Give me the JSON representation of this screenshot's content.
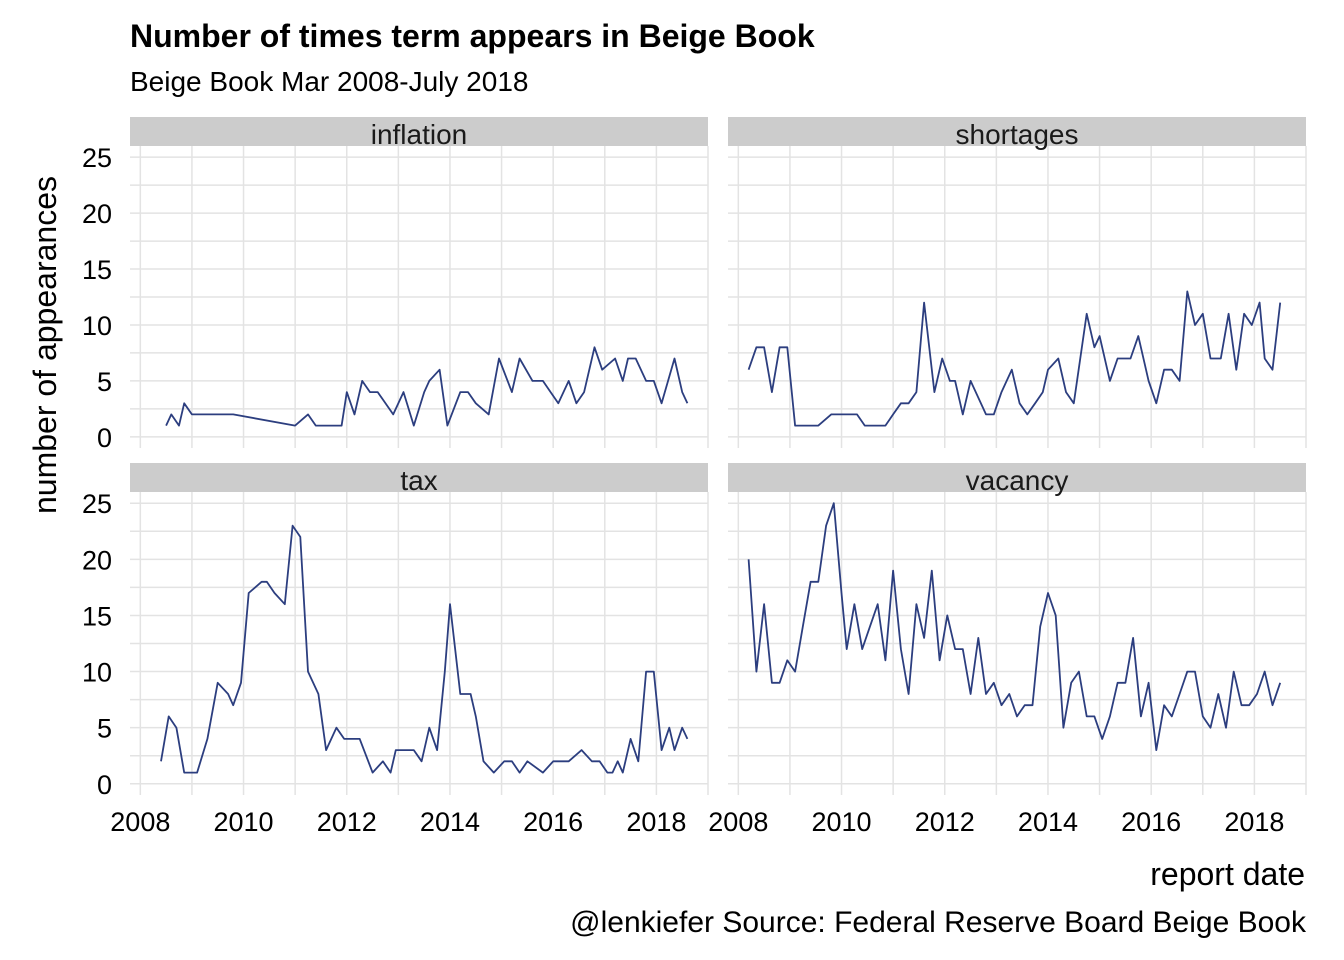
{
  "title": "Number of times term appears in Beige Book",
  "subtitle": "Beige Book Mar 2008-July 2018",
  "caption": "@lenkiefer Source: Federal Reserve Board Beige Book",
  "colors": {
    "line": "#2c3e7f",
    "strip": "#cccccc",
    "grid": "#e3e3e3"
  },
  "chart_data": {
    "type": "line",
    "title": "Number of times term appears in Beige Book",
    "xlabel": "report date",
    "ylabel": "number of appearances",
    "xlim": [
      2007.8,
      2019.0
    ],
    "ylim": [
      -1,
      26
    ],
    "x_ticks": [
      2008,
      2010,
      2012,
      2014,
      2016,
      2018
    ],
    "y_ticks": [
      0,
      5,
      10,
      15,
      20,
      25
    ],
    "grid": true,
    "facets": [
      {
        "name": "inflation",
        "x": [
          2008.5,
          2008.6,
          2008.75,
          2008.85,
          2009.0,
          2009.8,
          2011.0,
          2011.25,
          2011.4,
          2011.6,
          2011.9,
          2012.0,
          2012.15,
          2012.3,
          2012.45,
          2012.6,
          2012.9,
          2013.1,
          2013.3,
          2013.5,
          2013.6,
          2013.8,
          2013.95,
          2014.2,
          2014.35,
          2014.5,
          2014.75,
          2014.95,
          2015.2,
          2015.35,
          2015.6,
          2015.8,
          2015.95,
          2016.1,
          2016.3,
          2016.45,
          2016.6,
          2016.8,
          2016.95,
          2017.2,
          2017.35,
          2017.45,
          2017.6,
          2017.8,
          2017.95,
          2018.1,
          2018.35,
          2018.5,
          2018.6
        ],
        "y": [
          1,
          2,
          1,
          3,
          2,
          2,
          1,
          2,
          1,
          1,
          1,
          4,
          2,
          5,
          4,
          4,
          2,
          4,
          1,
          4,
          5,
          6,
          1,
          4,
          4,
          3,
          2,
          7,
          4,
          7,
          5,
          5,
          4,
          3,
          5,
          3,
          4,
          8,
          6,
          7,
          5,
          7,
          7,
          5,
          5,
          3,
          7,
          4,
          3
        ]
      },
      {
        "name": "shortages",
        "x": [
          2008.2,
          2008.35,
          2008.5,
          2008.65,
          2008.8,
          2008.95,
          2009.1,
          2009.55,
          2009.8,
          2010.3,
          2010.45,
          2010.85,
          2011.0,
          2011.15,
          2011.3,
          2011.45,
          2011.6,
          2011.8,
          2011.95,
          2012.1,
          2012.2,
          2012.35,
          2012.5,
          2012.8,
          2012.95,
          2013.1,
          2013.3,
          2013.45,
          2013.6,
          2013.75,
          2013.9,
          2014.0,
          2014.2,
          2014.35,
          2014.5,
          2014.75,
          2014.9,
          2015.0,
          2015.2,
          2015.35,
          2015.6,
          2015.75,
          2015.95,
          2016.1,
          2016.25,
          2016.4,
          2016.55,
          2016.7,
          2016.85,
          2017.0,
          2017.15,
          2017.35,
          2017.5,
          2017.65,
          2017.8,
          2017.95,
          2018.1,
          2018.2,
          2018.35,
          2018.5
        ],
        "y": [
          6,
          8,
          8,
          4,
          8,
          8,
          1,
          1,
          2,
          2,
          1,
          1,
          2,
          3,
          3,
          4,
          12,
          4,
          7,
          5,
          5,
          2,
          5,
          2,
          2,
          4,
          6,
          3,
          2,
          3,
          4,
          6,
          7,
          4,
          3,
          11,
          8,
          9,
          5,
          7,
          7,
          9,
          5,
          3,
          6,
          6,
          5,
          13,
          10,
          11,
          7,
          7,
          11,
          6,
          11,
          10,
          12,
          7,
          6,
          12
        ]
      },
      {
        "name": "tax",
        "x": [
          2008.4,
          2008.55,
          2008.7,
          2008.85,
          2009.1,
          2009.3,
          2009.5,
          2009.7,
          2009.8,
          2009.95,
          2010.1,
          2010.35,
          2010.45,
          2010.6,
          2010.8,
          2010.95,
          2011.1,
          2011.25,
          2011.45,
          2011.6,
          2011.8,
          2011.95,
          2012.1,
          2012.25,
          2012.5,
          2012.7,
          2012.85,
          2012.95,
          2013.1,
          2013.3,
          2013.45,
          2013.6,
          2013.75,
          2013.9,
          2014.0,
          2014.2,
          2014.4,
          2014.5,
          2014.65,
          2014.85,
          2015.05,
          2015.2,
          2015.35,
          2015.5,
          2015.8,
          2016.0,
          2016.3,
          2016.55,
          2016.75,
          2016.9,
          2017.05,
          2017.15,
          2017.25,
          2017.35,
          2017.5,
          2017.65,
          2017.8,
          2017.95,
          2018.1,
          2018.25,
          2018.35,
          2018.5,
          2018.6
        ],
        "y": [
          2,
          6,
          5,
          1,
          1,
          4,
          9,
          8,
          7,
          9,
          17,
          18,
          18,
          17,
          16,
          23,
          22,
          10,
          8,
          3,
          5,
          4,
          4,
          4,
          1,
          2,
          1,
          3,
          3,
          3,
          2,
          5,
          3,
          10,
          16,
          8,
          8,
          6,
          2,
          1,
          2,
          2,
          1,
          2,
          1,
          2,
          2,
          3,
          2,
          2,
          1,
          1,
          2,
          1,
          4,
          2,
          10,
          10,
          3,
          5,
          3,
          5,
          4
        ]
      },
      {
        "name": "vacancy",
        "x": [
          2008.2,
          2008.35,
          2008.5,
          2008.65,
          2008.8,
          2008.95,
          2009.1,
          2009.25,
          2009.4,
          2009.55,
          2009.7,
          2009.85,
          2010.0,
          2010.1,
          2010.25,
          2010.4,
          2010.55,
          2010.7,
          2010.85,
          2011.0,
          2011.15,
          2011.3,
          2011.45,
          2011.6,
          2011.75,
          2011.9,
          2012.05,
          2012.2,
          2012.35,
          2012.5,
          2012.65,
          2012.8,
          2012.95,
          2013.1,
          2013.25,
          2013.4,
          2013.55,
          2013.7,
          2013.85,
          2014.0,
          2014.15,
          2014.3,
          2014.45,
          2014.6,
          2014.75,
          2014.9,
          2015.05,
          2015.2,
          2015.35,
          2015.5,
          2015.65,
          2015.8,
          2015.95,
          2016.1,
          2016.25,
          2016.4,
          2016.55,
          2016.7,
          2016.85,
          2017.0,
          2017.15,
          2017.3,
          2017.45,
          2017.6,
          2017.75,
          2017.9,
          2018.05,
          2018.2,
          2018.35,
          2018.5
        ],
        "y": [
          20,
          10,
          16,
          9,
          9,
          11,
          10,
          14,
          18,
          18,
          23,
          25,
          17,
          12,
          16,
          12,
          14,
          16,
          11,
          19,
          12,
          8,
          16,
          13,
          19,
          11,
          15,
          12,
          12,
          8,
          13,
          8,
          9,
          7,
          8,
          6,
          7,
          7,
          14,
          17,
          15,
          5,
          9,
          10,
          6,
          6,
          4,
          6,
          9,
          9,
          13,
          6,
          9,
          3,
          7,
          6,
          8,
          10,
          10,
          6,
          5,
          8,
          5,
          10,
          7,
          7,
          8,
          10,
          7,
          9
        ]
      }
    ]
  }
}
